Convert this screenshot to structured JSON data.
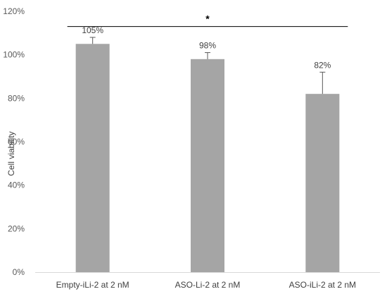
{
  "chart_data": {
    "type": "bar",
    "categories": [
      "Empty-iLi-2 at 2 nM",
      "ASO-Li-2 at 2 nM",
      "ASO-iLi-2 at 2 nM"
    ],
    "values": [
      105,
      98,
      82
    ],
    "error_upper": [
      3,
      3,
      10
    ],
    "data_labels": [
      "105%",
      "98%",
      "82%"
    ],
    "ylabel": "Cell viability",
    "ylim": [
      0,
      120
    ],
    "yticks": [
      0,
      20,
      40,
      60,
      80,
      100,
      120
    ],
    "ytick_labels": [
      "0%",
      "20%",
      "40%",
      "60%",
      "80%",
      "100%",
      "120%"
    ],
    "significance": {
      "from": 0,
      "to": 2,
      "level": 113,
      "label": "*"
    },
    "bar_color": "#a5a5a5",
    "error_color": "#595959",
    "grid": false,
    "legend": "none"
  }
}
